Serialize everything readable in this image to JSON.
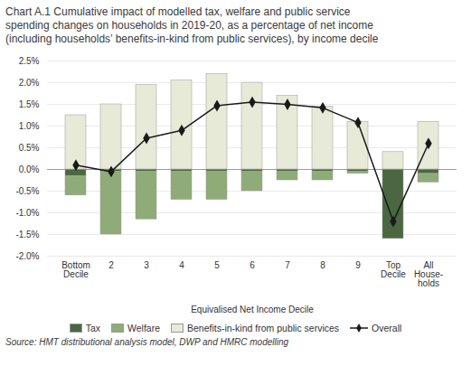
{
  "chart_data": {
    "type": "bar",
    "title": "Chart A.1 Cumulative impact of modelled tax, welfare and public service\nspending changes on households in 2019-20, as a percentage of net income\n(including households’ benefits-in-kind from public services), by income decile",
    "caption": "Source:  HMT distributional analysis model, DWP and HMRC modelling",
    "x_label": "Equivalised Net Income Decile",
    "categories": [
      "Bottom\nDecile",
      "2",
      "3",
      "4",
      "5",
      "6",
      "7",
      "8",
      "9",
      "Top\nDecile",
      "All\nHouse-\nholds"
    ],
    "stacked": true,
    "series": [
      {
        "name": "Tax",
        "type": "bar",
        "color": "#4a6741",
        "values": [
          -0.15,
          -0.05,
          -0.05,
          -0.05,
          -0.05,
          -0.05,
          -0.05,
          -0.05,
          -0.05,
          -1.6,
          -0.1
        ]
      },
      {
        "name": "Welfare",
        "type": "bar",
        "color": "#8fac78",
        "values": [
          -0.45,
          -1.45,
          -1.1,
          -0.65,
          -0.65,
          -0.45,
          -0.2,
          -0.2,
          -0.05,
          0.0,
          -0.2
        ]
      },
      {
        "name": "Benefits-in-kind from public services",
        "type": "bar",
        "color": "#e8ead8",
        "values": [
          1.25,
          1.5,
          1.95,
          2.05,
          2.2,
          2.0,
          1.7,
          1.45,
          1.1,
          0.4,
          1.1
        ]
      },
      {
        "name": "Overall",
        "type": "line",
        "color": "#1a1a1a",
        "marker": "diamond",
        "values": [
          0.1,
          -0.05,
          0.72,
          0.9,
          1.47,
          1.55,
          1.5,
          1.42,
          1.08,
          -1.2,
          0.6
        ]
      }
    ],
    "ylim": [
      -2.0,
      2.5
    ],
    "yticks": [
      {
        "value": -2.0,
        "label": "-2.0%"
      },
      {
        "value": -1.5,
        "label": "-1.5%"
      },
      {
        "value": -1.0,
        "label": "-1.0%"
      },
      {
        "value": -0.5,
        "label": "-0.5%"
      },
      {
        "value": 0.0,
        "label": "0.0%"
      },
      {
        "value": 0.5,
        "label": "0.5%"
      },
      {
        "value": 1.0,
        "label": "1.0%"
      },
      {
        "value": 1.5,
        "label": "1.5%"
      },
      {
        "value": 2.0,
        "label": "2.0%"
      },
      {
        "value": 2.5,
        "label": "2.5%"
      }
    ],
    "grid": true,
    "legend": "bottom"
  }
}
